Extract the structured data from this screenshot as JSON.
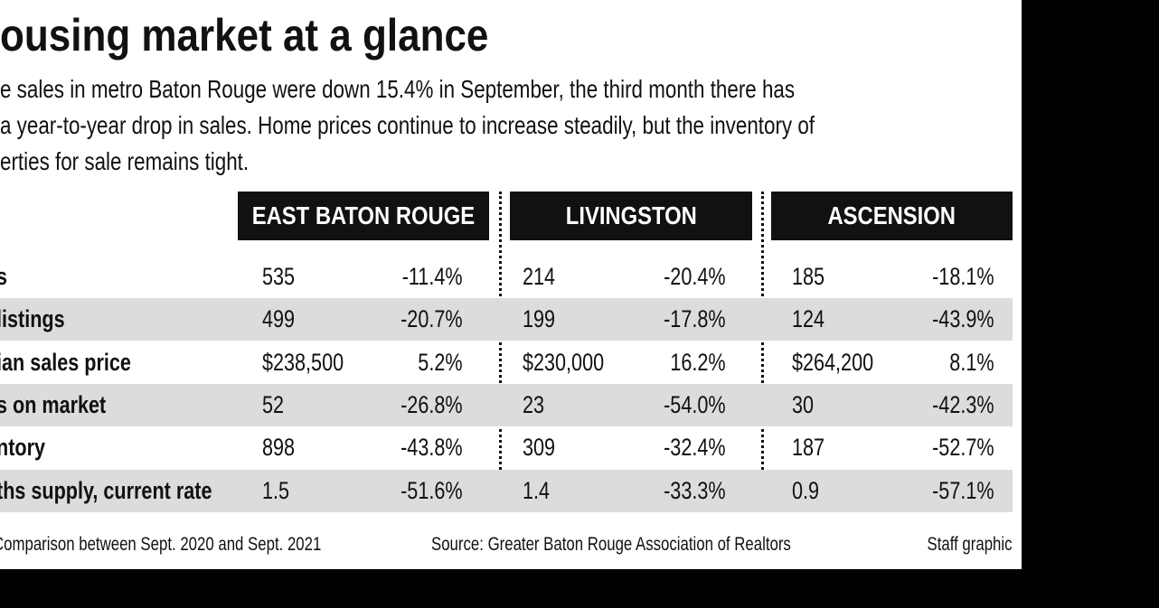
{
  "header": {
    "title": "ousing market at a glance",
    "intro": [
      "e sales in metro Baton Rouge were down 15.4% in September, the third month there has",
      "a year-to-year drop in sales. Home prices continue to increase steadily, but the inventory of",
      "erties for sale remains tight."
    ]
  },
  "table": {
    "columns": [
      "EAST BATON ROUGE",
      "LIVINGSTON",
      "ASCENSION"
    ],
    "rows": [
      [
        "s",
        "535",
        "-11.4%",
        "214",
        "-20.4%",
        "185",
        "-18.1%"
      ],
      [
        "listings",
        "499",
        "-20.7%",
        "199",
        "-17.8%",
        "124",
        "-43.9%"
      ],
      [
        "ian sales price",
        "$238,500",
        "5.2%",
        "$230,000",
        "16.2%",
        "$264,200",
        "8.1%"
      ],
      [
        "s on market",
        "52",
        "-26.8%",
        "23",
        "-54.0%",
        "30",
        "-42.3%"
      ],
      [
        "ntory",
        "898",
        "-43.8%",
        "309",
        "-32.4%",
        "187",
        "-52.7%"
      ],
      [
        "ths supply, current rate",
        "1.5",
        "-51.6%",
        "1.4",
        "-33.3%",
        "0.9",
        "-57.1%"
      ]
    ]
  },
  "footer": {
    "note": "Comparison between Sept. 2020 and Sept. 2021",
    "source": "Source: Greater Baton Rouge Association of Realtors",
    "credit": "Staff graphic"
  }
}
